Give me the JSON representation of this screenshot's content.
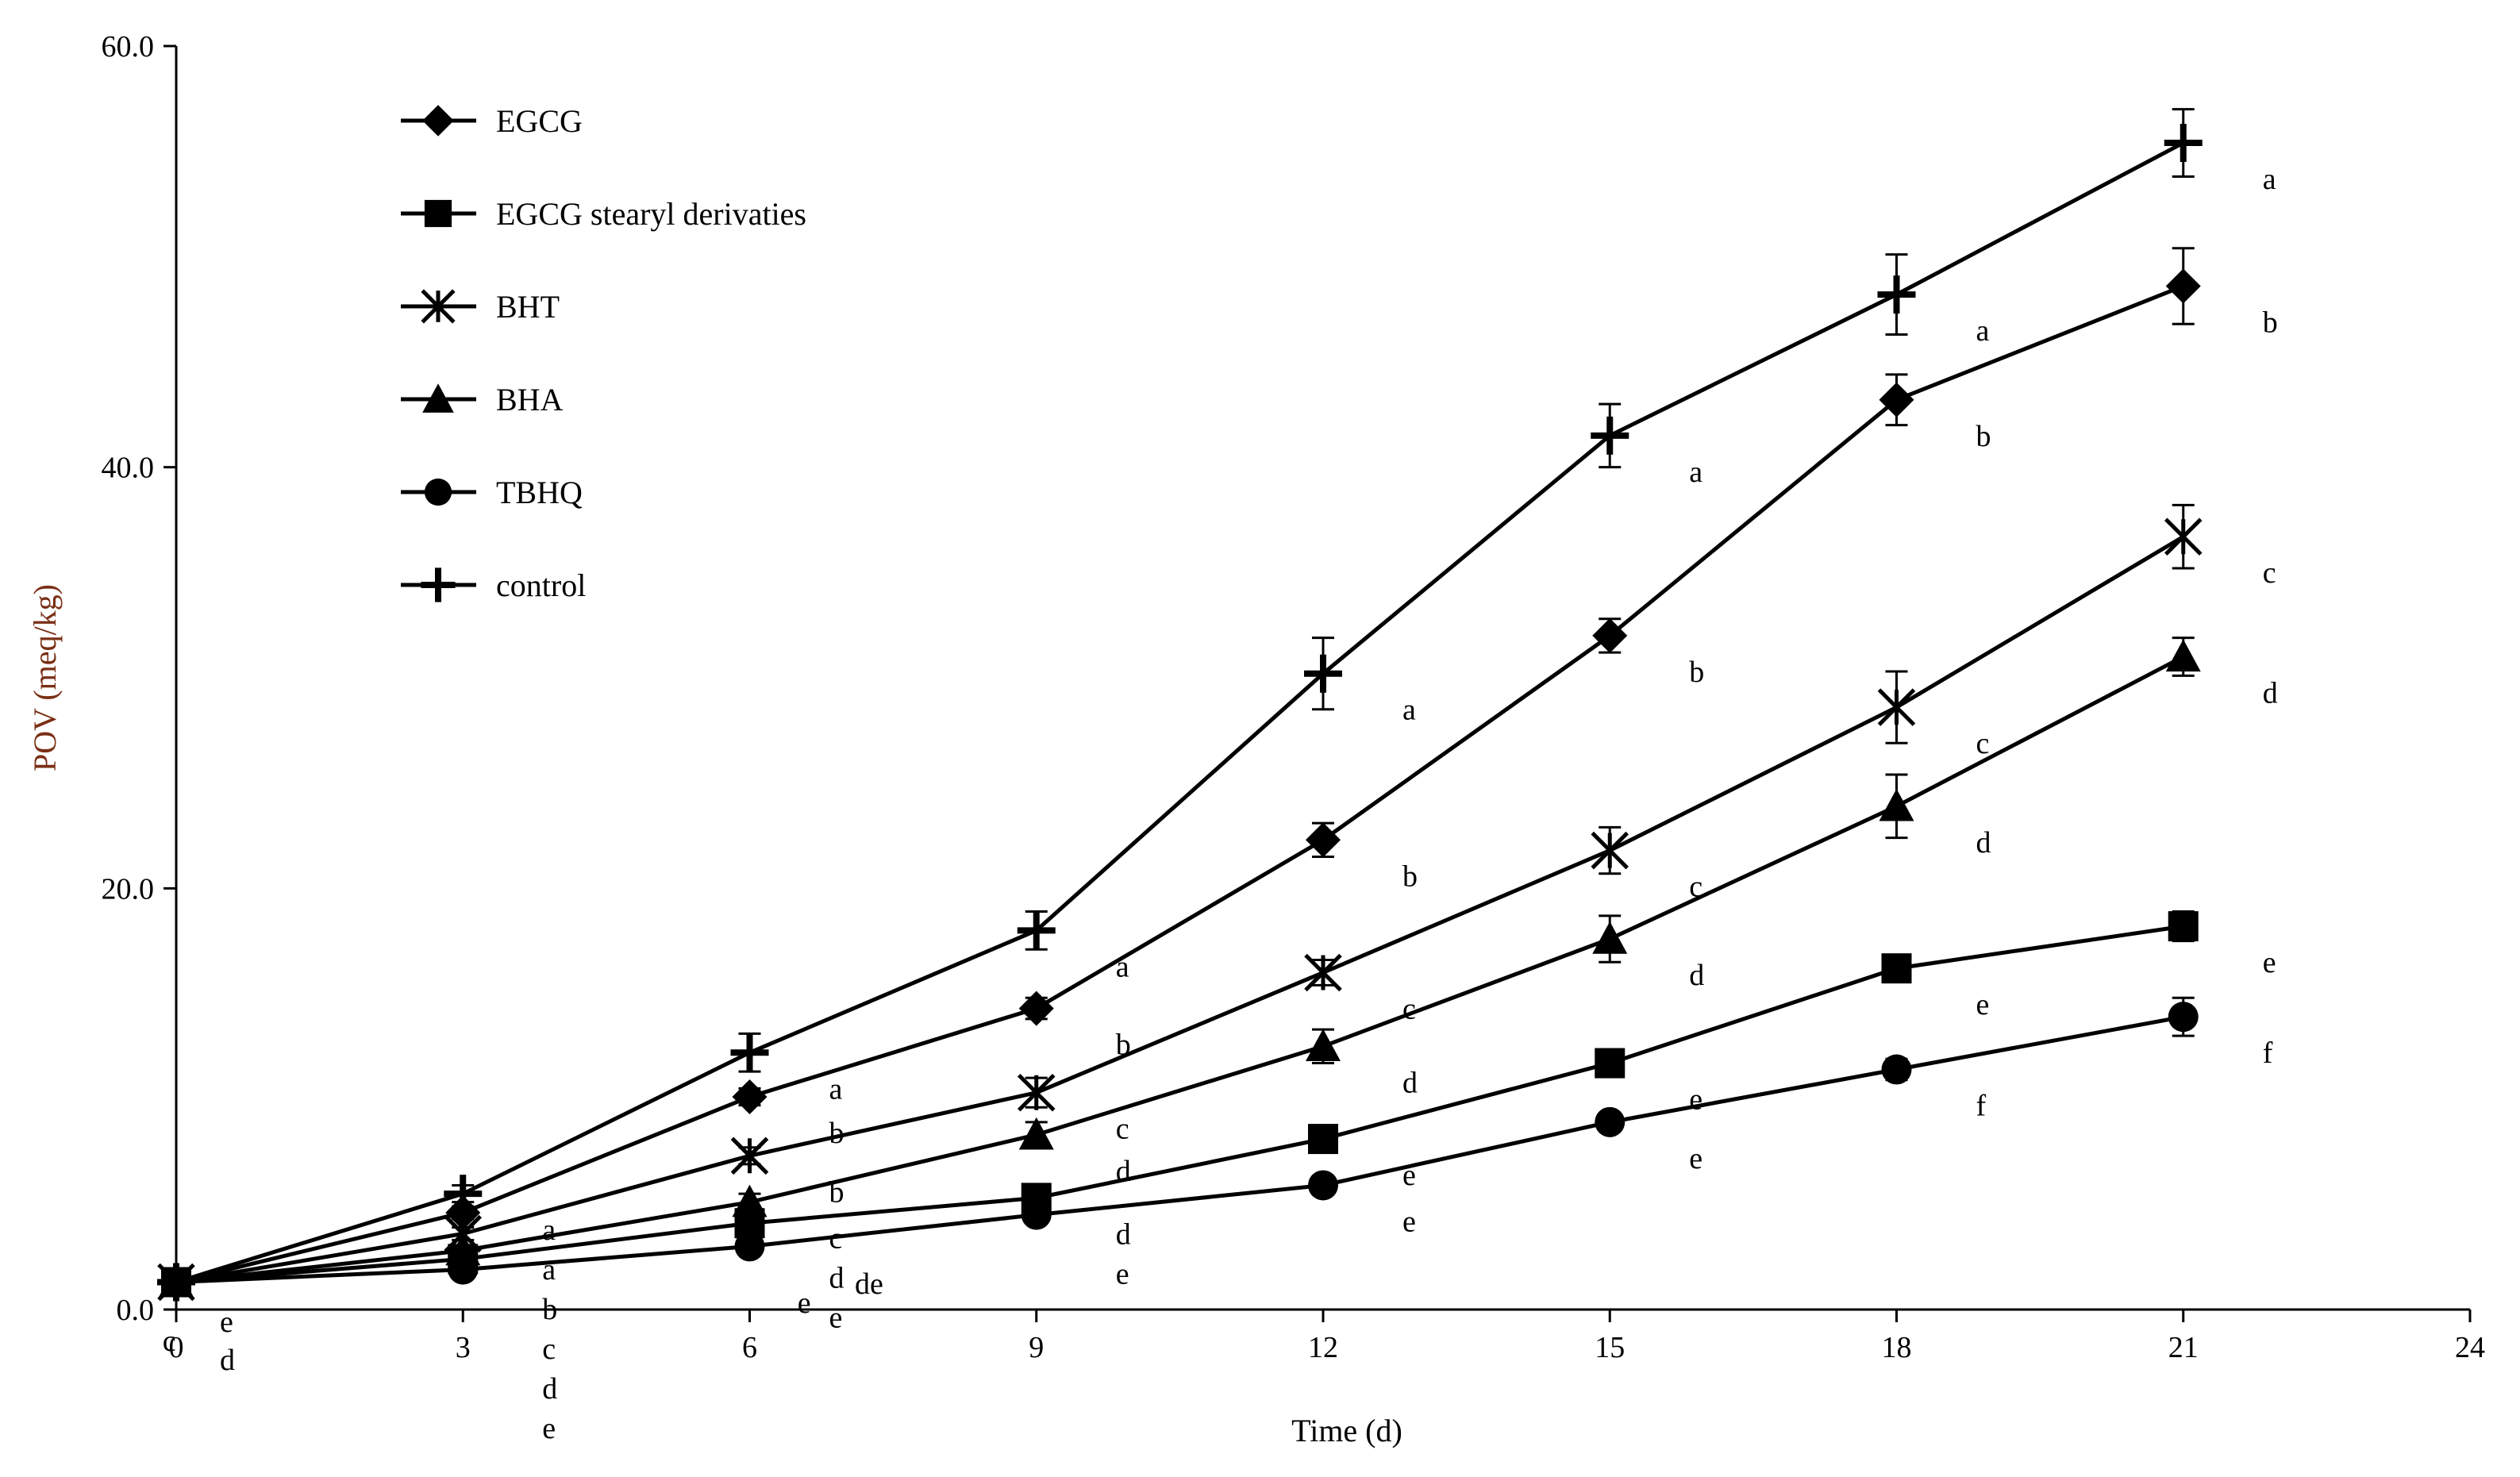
{
  "chart_data": {
    "type": "line",
    "title": "",
    "xlabel": "Time (d)",
    "ylabel": "POV (meq/kg)",
    "xlim": [
      0,
      24
    ],
    "ylim": [
      0,
      60
    ],
    "xticks": [
      0,
      3,
      6,
      9,
      12,
      15,
      18,
      21,
      24
    ],
    "xtick_labels": [
      "0",
      "3",
      "6",
      "9",
      "12",
      "15",
      "18",
      "21",
      "24"
    ],
    "yticks": [
      0,
      20,
      40,
      60
    ],
    "ytick_labels": [
      "0.0",
      "20.0",
      "40.0",
      "60.0"
    ],
    "grid": false,
    "legend_position": "top-left",
    "x": [
      0,
      3,
      6,
      9,
      12,
      15,
      18,
      21
    ],
    "series": [
      {
        "name": "EGCG",
        "marker": "diamond",
        "values": [
          1.3,
          4.6,
          10.1,
          14.3,
          22.3,
          32.0,
          43.2,
          48.6
        ],
        "errors": [
          0.3,
          0.3,
          0.4,
          0.5,
          0.8,
          0.8,
          1.2,
          1.8
        ],
        "sig": [
          "",
          "a",
          "b",
          "b",
          "b",
          "b",
          "b",
          "b"
        ]
      },
      {
        "name": "EGCG stearyl derivaties",
        "marker": "square",
        "values": [
          1.3,
          2.4,
          4.1,
          5.3,
          8.1,
          11.7,
          16.2,
          18.2
        ],
        "errors": [
          0.2,
          0.2,
          0.3,
          0.4,
          0.4,
          0.5,
          0.5,
          0.7
        ],
        "sig": [
          "",
          "d",
          "d",
          "d",
          "e",
          "e",
          "e",
          "e"
        ]
      },
      {
        "name": "BHT",
        "marker": "star",
        "values": [
          1.3,
          3.6,
          7.3,
          10.3,
          16.0,
          21.8,
          28.6,
          36.7
        ],
        "errors": [
          0.3,
          0.3,
          0.4,
          0.7,
          0.6,
          1.1,
          1.7,
          1.5
        ],
        "sig": [
          "",
          "b",
          "b",
          "c",
          "c",
          "c",
          "c",
          "c"
        ]
      },
      {
        "name": "BHA",
        "marker": "triangle",
        "values": [
          1.3,
          2.8,
          5.1,
          8.3,
          12.5,
          17.6,
          23.9,
          31.0
        ],
        "errors": [
          0.2,
          0.2,
          0.4,
          0.6,
          0.8,
          1.1,
          1.5,
          0.9
        ],
        "sig": [
          "",
          "c",
          "c",
          "d",
          "d",
          "d",
          "d",
          "d"
        ]
      },
      {
        "name": "TBHQ",
        "marker": "circle",
        "values": [
          1.3,
          1.9,
          3.0,
          4.5,
          5.9,
          8.9,
          11.4,
          13.9
        ],
        "errors": [
          0.2,
          0.2,
          0.3,
          0.3,
          0.3,
          0.4,
          0.5,
          0.9
        ],
        "sig": [
          "",
          "e",
          "e",
          "e",
          "e",
          "e",
          "f",
          "f"
        ]
      },
      {
        "name": "control",
        "marker": "plus",
        "values": [
          1.3,
          5.5,
          12.2,
          18.0,
          30.2,
          41.5,
          48.2,
          55.4
        ],
        "errors": [
          0.3,
          0.4,
          0.9,
          0.9,
          1.7,
          1.5,
          1.9,
          1.6
        ],
        "sig": [
          "",
          "a",
          "a",
          "a",
          "a",
          "a",
          "a",
          "a"
        ]
      }
    ],
    "extra_annotations": [
      "de",
      "e",
      "e",
      "c",
      "d"
    ]
  }
}
